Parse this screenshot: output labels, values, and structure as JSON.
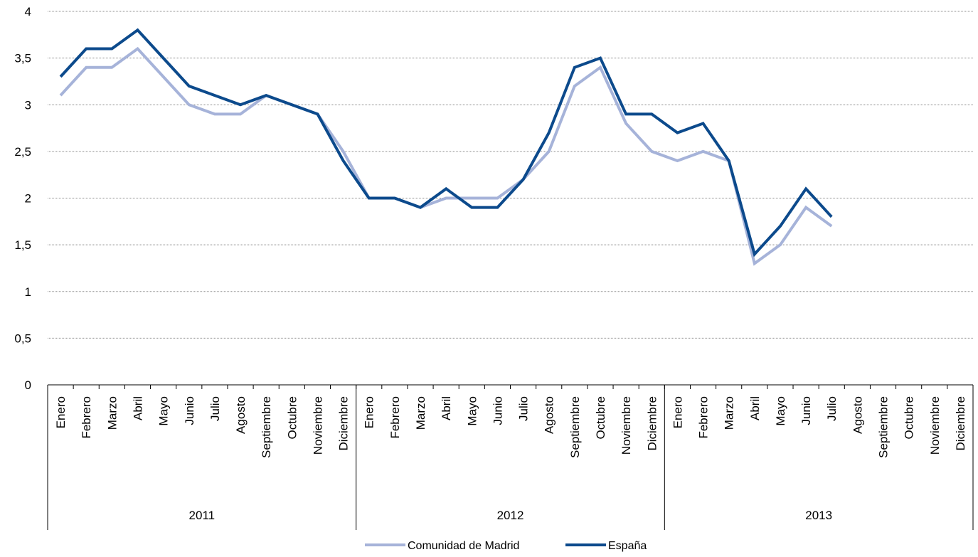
{
  "chart_data": {
    "type": "line",
    "title": "",
    "xlabel": "",
    "ylabel": "",
    "ylim": [
      0,
      4
    ],
    "yticks": [
      "0",
      "0,5",
      "1",
      "1,5",
      "2",
      "2,5",
      "3",
      "3,5",
      "4"
    ],
    "grid": "horizontal-dotted",
    "legend_position": "bottom",
    "years": [
      {
        "label": "2011",
        "months": [
          "Enero",
          "Febrero",
          "Marzo",
          "Abril",
          "Mayo",
          "Junio",
          "Julio",
          "Agosto",
          "Septiembre",
          "Octubre",
          "Noviembre",
          "Diciembre"
        ]
      },
      {
        "label": "2012",
        "months": [
          "Enero",
          "Febrero",
          "Marzo",
          "Abril",
          "Mayo",
          "Junio",
          "Julio",
          "Agosto",
          "Septiembre",
          "Octubre",
          "Noviembre",
          "Diciembre"
        ]
      },
      {
        "label": "2013",
        "months": [
          "Enero",
          "Febrero",
          "Marzo",
          "Abril",
          "Mayo",
          "Junio",
          "Julio",
          "Agosto",
          "Septiembre",
          "Octubre",
          "Noviembre",
          "Diciembre"
        ]
      }
    ],
    "series": [
      {
        "name": "Comunidad de Madrid",
        "color": "#a6b3d9",
        "values": [
          3.1,
          3.4,
          3.4,
          3.6,
          3.3,
          3.0,
          2.9,
          2.9,
          3.1,
          3.0,
          2.9,
          2.5,
          2.0,
          2.0,
          1.9,
          2.0,
          2.0,
          2.0,
          2.2,
          2.5,
          3.2,
          3.4,
          2.8,
          2.5,
          2.4,
          2.5,
          2.4,
          1.3,
          1.5,
          1.9,
          1.7
        ]
      },
      {
        "name": "España",
        "color": "#0c4a8c",
        "values": [
          3.3,
          3.6,
          3.6,
          3.8,
          3.5,
          3.2,
          3.1,
          3.0,
          3.1,
          3.0,
          2.9,
          2.4,
          2.0,
          2.0,
          1.9,
          2.1,
          1.9,
          1.9,
          2.2,
          2.7,
          3.4,
          3.5,
          2.9,
          2.9,
          2.7,
          2.8,
          2.4,
          1.4,
          1.7,
          2.1,
          1.8
        ]
      }
    ]
  }
}
